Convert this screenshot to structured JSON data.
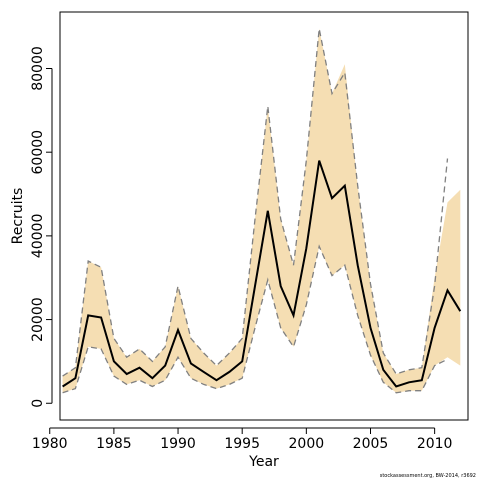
{
  "chart_data": {
    "type": "line",
    "title": "",
    "xlabel": "Year",
    "ylabel": "Recruits",
    "xlim": [
      1980.8,
      2012.6
    ],
    "ylim": [
      -4000,
      93500
    ],
    "x_ticks": [
      1980,
      1985,
      1990,
      1995,
      2000,
      2005,
      2010
    ],
    "y_ticks": [
      0,
      20000,
      40000,
      60000,
      80000
    ],
    "grid": false,
    "legend": "none",
    "colors": {
      "band": "#f5deb3",
      "bounds": "#808080",
      "median": "#000000"
    },
    "series": [
      {
        "years": [
          1981,
          1982,
          1983,
          1984,
          1985,
          1986,
          1987,
          1988,
          1989,
          1990,
          1991,
          1992,
          1993,
          1994,
          1995,
          1996,
          1997,
          1998,
          1999,
          2000,
          2001,
          2002,
          2003,
          2004,
          2005,
          2006,
          2007,
          2008,
          2009,
          2010,
          2011,
          2012
        ],
        "median": [
          4000,
          6000,
          21000,
          20500,
          10000,
          7000,
          8500,
          6000,
          9000,
          17500,
          9500,
          7500,
          5500,
          7500,
          10000,
          28000,
          46000,
          28000,
          21000,
          37000,
          58000,
          49000,
          52000,
          33000,
          18000,
          8000,
          4000,
          5000,
          5500,
          18000,
          27000,
          22000
        ],
        "lower": [
          2500,
          3500,
          13500,
          13000,
          6500,
          4500,
          5500,
          4000,
          5500,
          11000,
          6000,
          4500,
          3500,
          4500,
          6000,
          18000,
          29500,
          18000,
          13500,
          23500,
          37500,
          30500,
          33000,
          21000,
          11500,
          5000,
          2500,
          3000,
          3000,
          9000,
          11000,
          9000
        ],
        "upper": [
          6500,
          8500,
          34000,
          32500,
          15500,
          11000,
          13000,
          10000,
          13500,
          28000,
          15500,
          12000,
          9000,
          12000,
          15500,
          44000,
          71000,
          44000,
          33000,
          58000,
          89500,
          74000,
          81000,
          52000,
          28500,
          12000,
          7000,
          8000,
          8500,
          30000,
          48000,
          51000
        ],
        "lower_dashed": [
          2500,
          3500,
          13500,
          13000,
          6500,
          4500,
          5500,
          4000,
          5500,
          11000,
          6000,
          4500,
          3500,
          4500,
          6000,
          18000,
          29500,
          18000,
          13500,
          23500,
          37500,
          30500,
          33000,
          21000,
          11500,
          5000,
          2500,
          3000,
          3000,
          9000,
          10500
        ],
        "upper_dashed": [
          6500,
          8500,
          34000,
          32500,
          15500,
          11000,
          13000,
          10000,
          13500,
          28000,
          15500,
          12000,
          9000,
          12000,
          15500,
          44000,
          71000,
          44000,
          33000,
          58000,
          89500,
          74000,
          79000,
          52000,
          28500,
          12000,
          7000,
          8000,
          8500,
          28000,
          58500
        ]
      }
    ]
  },
  "footnote": "stockassessment.org, BW-2014, r3692"
}
